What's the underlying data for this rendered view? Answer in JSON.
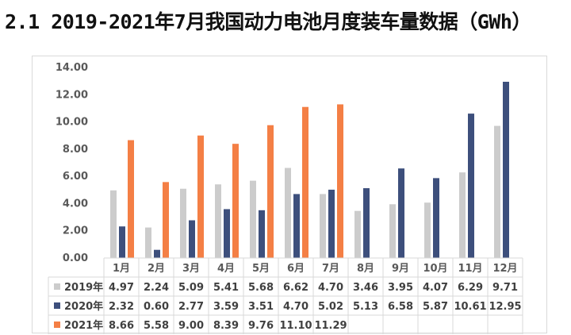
{
  "page": {
    "title": "2.1 2019-2021年7月我国动力电池月度装车量数据（GWh）"
  },
  "colors": {
    "2019": "#cccccc",
    "2020": "#3d4f7c",
    "2021": "#f47f45",
    "grid": "#d9d9d9"
  },
  "chart_data": {
    "type": "bar",
    "title": "2019-2021年7月我国动力电池月度装车量数据（GWh）",
    "categories": [
      "1月",
      "2月",
      "3月",
      "4月",
      "5月",
      "6月",
      "7月",
      "8月",
      "9月",
      "10月",
      "11月",
      "12月"
    ],
    "ylim": [
      0,
      14
    ],
    "yticks": [
      "0.00",
      "2.00",
      "4.00",
      "6.00",
      "8.00",
      "10.00",
      "12.00",
      "14.00"
    ],
    "series": [
      {
        "name": "2019年",
        "key": "2019",
        "values": [
          4.97,
          2.24,
          5.09,
          5.41,
          5.68,
          6.62,
          4.7,
          3.46,
          3.95,
          4.07,
          6.29,
          9.71
        ],
        "labels": [
          "4.97",
          "2.24",
          "5.09",
          "5.41",
          "5.68",
          "6.62",
          "4.70",
          "3.46",
          "3.95",
          "4.07",
          "6.29",
          "9.71"
        ]
      },
      {
        "name": "2020年",
        "key": "2020",
        "values": [
          2.32,
          0.6,
          2.77,
          3.59,
          3.51,
          4.7,
          5.02,
          5.13,
          6.58,
          5.87,
          10.61,
          12.95
        ],
        "labels": [
          "2.32",
          "0.60",
          "2.77",
          "3.59",
          "3.51",
          "4.70",
          "5.02",
          "5.13",
          "6.58",
          "5.87",
          "10.61",
          "12.95"
        ]
      },
      {
        "name": "2021年",
        "key": "2021",
        "values": [
          8.66,
          5.58,
          9.0,
          8.39,
          9.76,
          11.1,
          11.29,
          null,
          null,
          null,
          null,
          null
        ],
        "labels": [
          "8.66",
          "5.58",
          "9.00",
          "8.39",
          "9.76",
          "11.10",
          "11.29",
          "",
          "",
          "",
          "",
          ""
        ]
      }
    ],
    "legend": "data-table-left",
    "grid": false
  }
}
